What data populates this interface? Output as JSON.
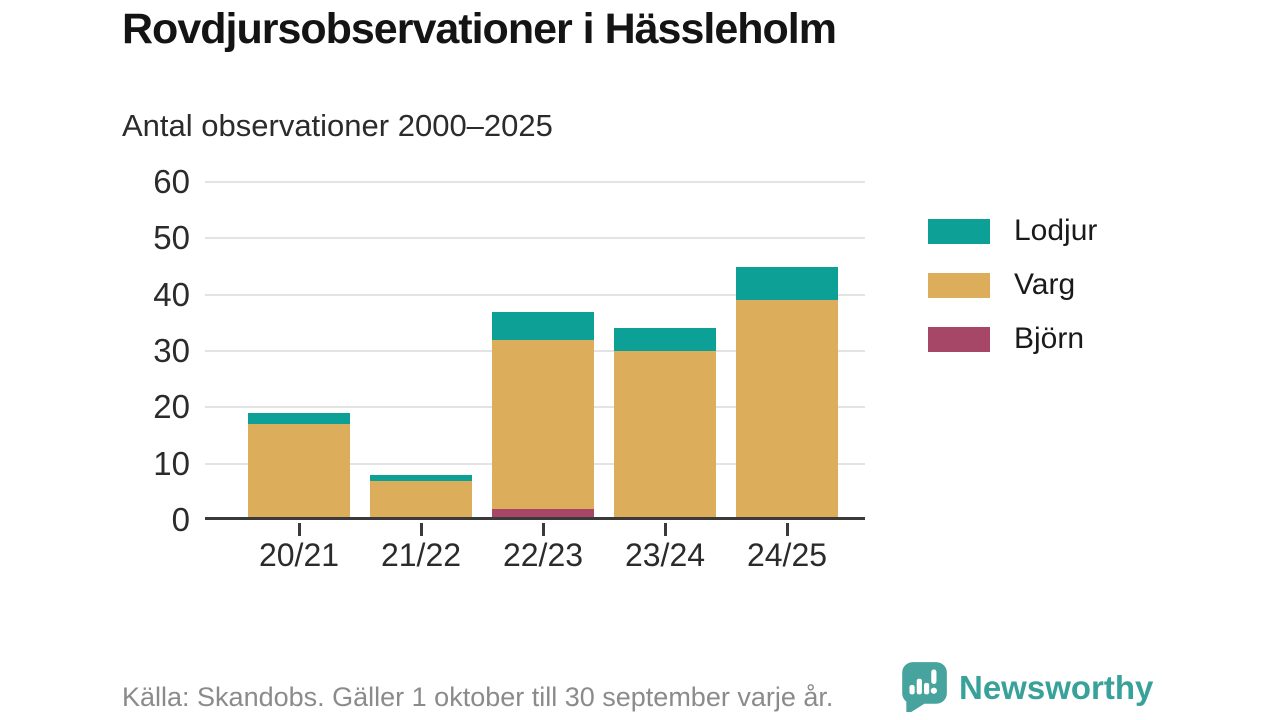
{
  "chart_data": {
    "type": "bar",
    "stacked": true,
    "title": "Rovdjursobservationer i Hässleholm",
    "subtitle": "Antal observationer 2000–2025",
    "categories": [
      "20/21",
      "21/22",
      "22/23",
      "23/24",
      "24/25"
    ],
    "series": [
      {
        "name": "Lodjur",
        "color": "#0ca096",
        "values": [
          2,
          1,
          5,
          4,
          6
        ]
      },
      {
        "name": "Varg",
        "color": "#dcae5c",
        "values": [
          17,
          7,
          30,
          30,
          39
        ]
      },
      {
        "name": "Björn",
        "color": "#a64767",
        "values": [
          0,
          0,
          2,
          0,
          0
        ]
      }
    ],
    "stack_order_bottom_to_top": [
      "Björn",
      "Varg",
      "Lodjur"
    ],
    "totals": [
      19,
      8,
      37,
      34,
      45
    ],
    "xlabel": "",
    "ylabel": "",
    "ylim": [
      0,
      60
    ],
    "yticks": [
      0,
      10,
      20,
      30,
      40,
      50,
      60
    ],
    "grid": true,
    "legend_position": "right"
  },
  "footer": {
    "source": "Källa: Skandobs. Gäller 1 oktober till 30 september varje år."
  },
  "brand": {
    "name": "Newsworthy",
    "color": "#3ba29b",
    "icon": "newsworthy-speech-bubble-bar-chart-icon"
  }
}
